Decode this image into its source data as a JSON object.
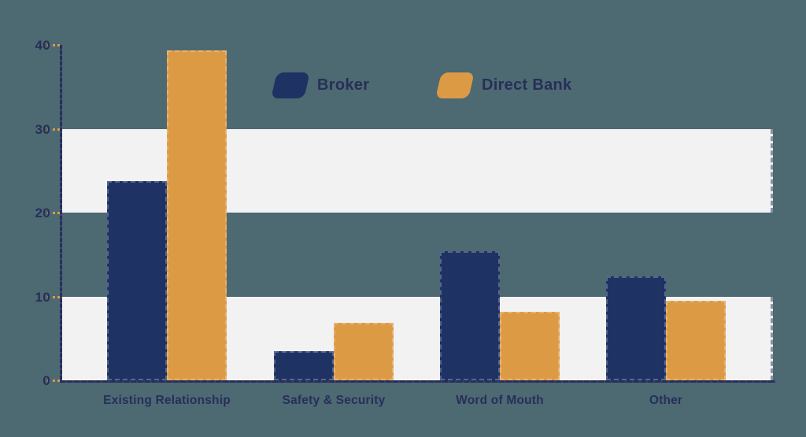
{
  "page": {
    "background_color": "#4d6972",
    "band_color": "#f2f2f3",
    "axis_color": "#272f58",
    "tick_color": "#dd9a44",
    "text_color": "#272f58"
  },
  "chart_data": {
    "type": "bar",
    "title": "",
    "xlabel": "",
    "ylabel": "",
    "categories": [
      "Existing Relationship",
      "Safety & Security",
      "Word of Mouth",
      "Other"
    ],
    "series": [
      {
        "name": "Broker",
        "color": "#1f3264",
        "values": [
          23.8,
          3.5,
          15.4,
          12.4
        ]
      },
      {
        "name": "Direct Bank",
        "color": "#dd9a44",
        "values": [
          39.3,
          6.9,
          8.2,
          9.5
        ]
      }
    ],
    "ylim": [
      0,
      40
    ],
    "yticks": [
      0,
      10,
      20,
      30,
      40
    ],
    "grid": "alternating-horizontal-bands",
    "band_ranges": [
      [
        0,
        10
      ],
      [
        20,
        30
      ]
    ],
    "legend_position": "top-center"
  }
}
